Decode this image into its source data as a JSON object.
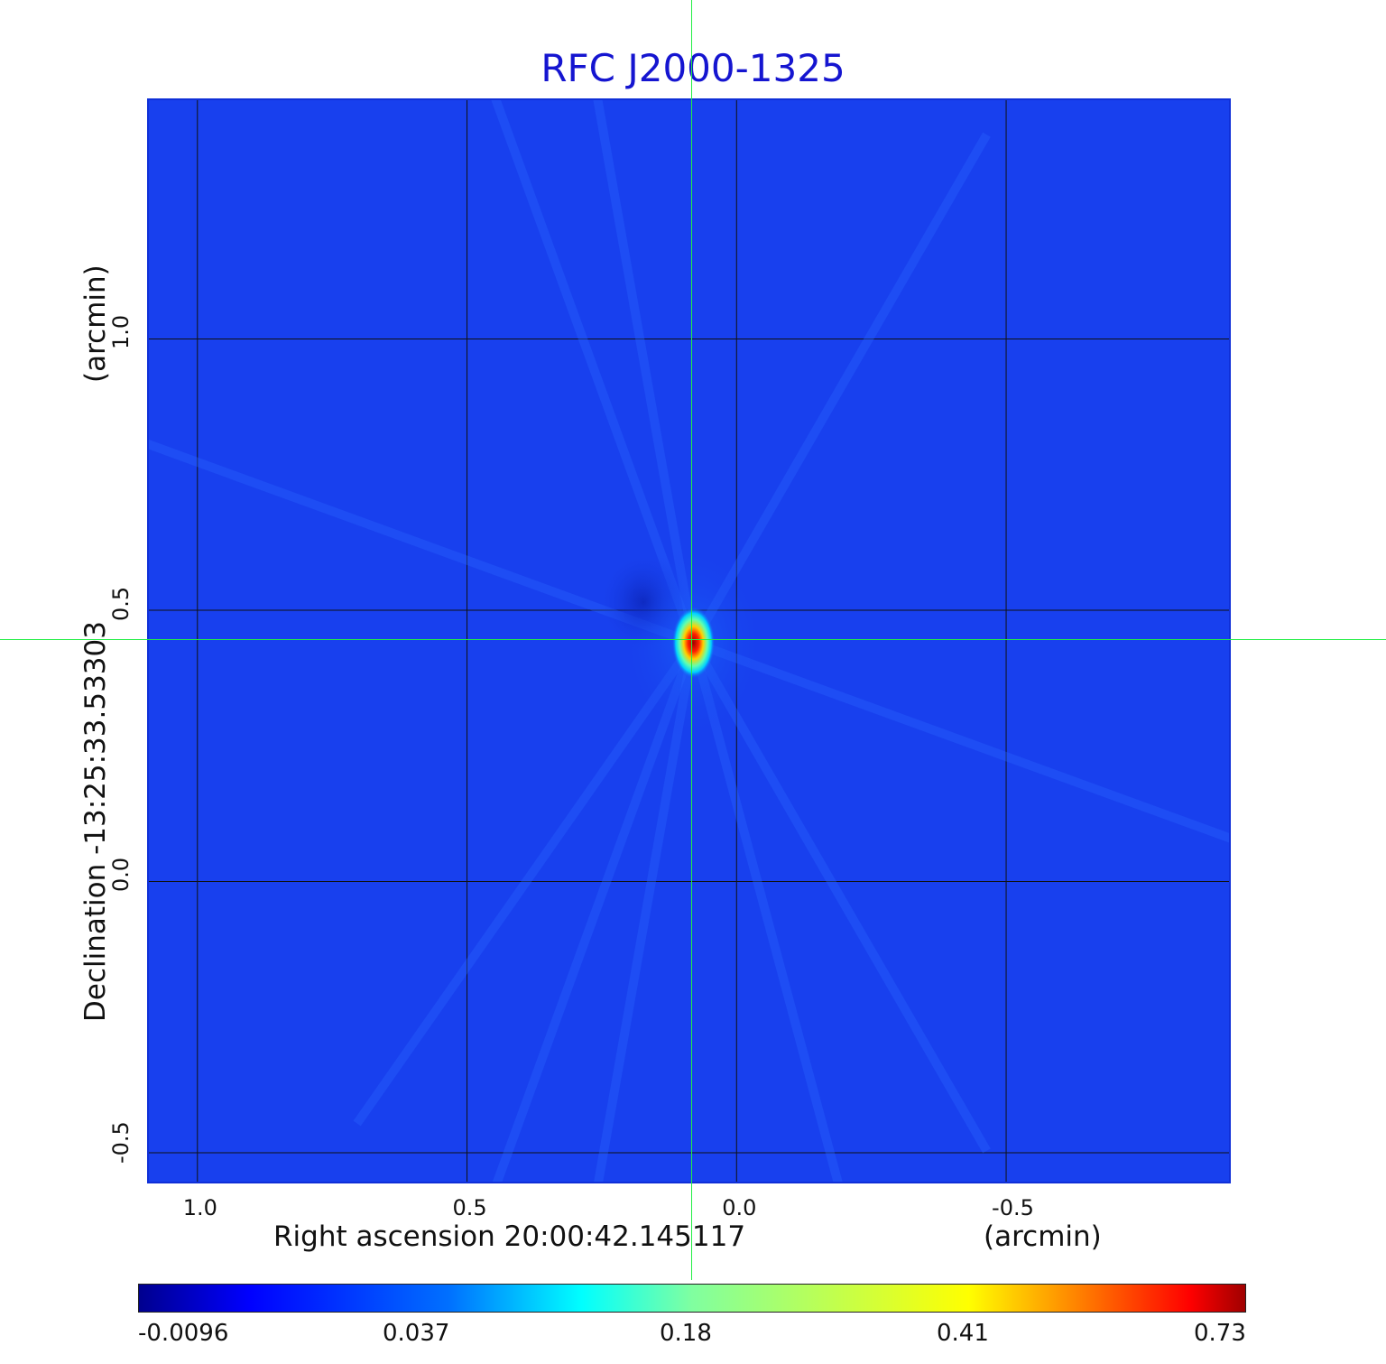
{
  "title": "RFC J2000-1325",
  "colors": {
    "background_field": "#1840ee",
    "title": "#1515d0",
    "crosshair": "#22ee44",
    "colormap": "jet"
  },
  "chart_data": {
    "type": "heatmap",
    "title": "RFC J2000-1325",
    "xlabel": "Right ascension  20:00:42.145117",
    "xunit": "(arcmin)",
    "ylabel": "Declination  -13:25:33.53303",
    "yunit": "(arcmin)",
    "x_axis": {
      "reversed": true,
      "ticks": [
        "1.0",
        "0.5",
        "0.0",
        "-0.5"
      ],
      "tick_values": [
        1.0,
        0.5,
        0.0,
        -0.5
      ],
      "range": [
        1.09,
        -0.92
      ]
    },
    "y_axis": {
      "ticks": [
        "1.0",
        "0.5",
        "0.0",
        "-0.5"
      ],
      "tick_values": [
        1.0,
        0.5,
        0.0,
        -0.5
      ],
      "range": [
        -0.56,
        1.44
      ]
    },
    "grid": true,
    "source": {
      "x": 0.08,
      "y": 0.44,
      "peak": 0.73
    },
    "colorbar": {
      "ticks": [
        "-0.0096",
        "0.037",
        "0.18",
        "0.41",
        "0.73"
      ],
      "min": -0.0096,
      "max": 0.73,
      "placement": "bottom"
    }
  }
}
